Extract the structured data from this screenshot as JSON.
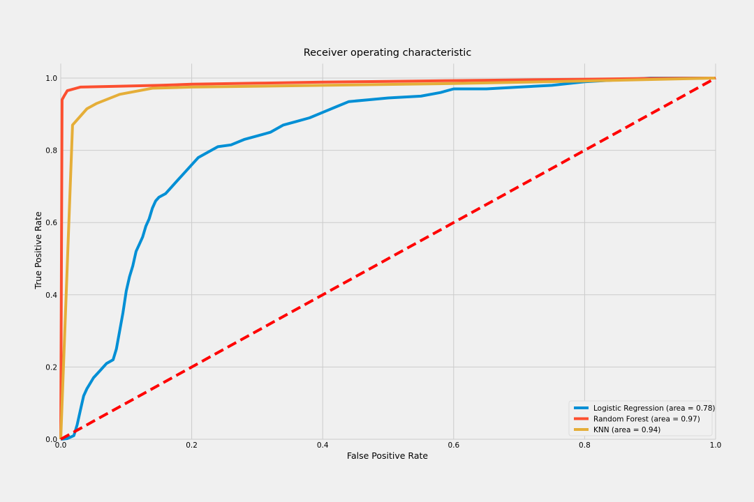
{
  "chart_data": {
    "type": "line",
    "title": "Receiver operating characteristic",
    "xlabel": "False Positive Rate",
    "ylabel": "True Positive Rate",
    "xlim": [
      0,
      1
    ],
    "ylim": [
      0,
      1.04
    ],
    "xticks": [
      0.0,
      0.2,
      0.4,
      0.6,
      0.8,
      1.0
    ],
    "xtick_labels": [
      "0.0",
      "0.2",
      "0.4",
      "0.6",
      "0.8",
      "1.0"
    ],
    "yticks": [
      0.0,
      0.2,
      0.4,
      0.6,
      0.8,
      1.0
    ],
    "ytick_labels": [
      "0.0",
      "0.2",
      "0.4",
      "0.6",
      "0.8",
      "1.0"
    ],
    "grid": true,
    "legend_position": "lower-right",
    "series": [
      {
        "name": "Logistic Regression (area = 0.78)",
        "color": "#008fd5",
        "style": "solid",
        "x": [
          0.0,
          0.01,
          0.02,
          0.025,
          0.03,
          0.035,
          0.04,
          0.05,
          0.06,
          0.065,
          0.07,
          0.08,
          0.085,
          0.09,
          0.095,
          0.1,
          0.105,
          0.11,
          0.115,
          0.12,
          0.125,
          0.13,
          0.135,
          0.14,
          0.145,
          0.15,
          0.16,
          0.17,
          0.18,
          0.19,
          0.2,
          0.21,
          0.22,
          0.24,
          0.26,
          0.28,
          0.3,
          0.32,
          0.34,
          0.36,
          0.38,
          0.4,
          0.42,
          0.44,
          0.47,
          0.5,
          0.55,
          0.58,
          0.6,
          0.65,
          0.7,
          0.75,
          0.8,
          0.85,
          0.9,
          0.95,
          1.0
        ],
        "y": [
          0.0,
          0.002,
          0.01,
          0.04,
          0.08,
          0.12,
          0.14,
          0.17,
          0.19,
          0.2,
          0.21,
          0.22,
          0.25,
          0.3,
          0.35,
          0.41,
          0.45,
          0.48,
          0.52,
          0.54,
          0.56,
          0.59,
          0.61,
          0.64,
          0.66,
          0.67,
          0.68,
          0.7,
          0.72,
          0.74,
          0.76,
          0.78,
          0.79,
          0.81,
          0.815,
          0.83,
          0.84,
          0.85,
          0.87,
          0.88,
          0.89,
          0.905,
          0.92,
          0.935,
          0.94,
          0.945,
          0.95,
          0.96,
          0.97,
          0.97,
          0.975,
          0.98,
          0.99,
          0.995,
          1.0,
          1.0,
          1.0
        ]
      },
      {
        "name": "Random Forest (area = 0.97)",
        "color": "#fc4f30",
        "style": "solid",
        "x": [
          0.0,
          0.002,
          0.005,
          0.01,
          0.03,
          0.08,
          0.15,
          0.2,
          0.3,
          0.4,
          0.5,
          0.6,
          0.7,
          0.8,
          0.9,
          1.0
        ],
        "y": [
          0.0,
          0.94,
          0.95,
          0.965,
          0.975,
          0.977,
          0.98,
          0.983,
          0.986,
          0.989,
          0.991,
          0.993,
          0.995,
          0.997,
          0.999,
          1.0
        ]
      },
      {
        "name": "KNN (area = 0.94)",
        "color": "#e5ae38",
        "style": "solid",
        "x": [
          0.0,
          0.018,
          0.04,
          0.055,
          0.09,
          0.14,
          0.2,
          0.4,
          0.6,
          0.8,
          1.0
        ],
        "y": [
          0.0,
          0.87,
          0.915,
          0.93,
          0.955,
          0.972,
          0.975,
          0.98,
          0.985,
          0.992,
          1.0
        ]
      },
      {
        "name": "",
        "color": "#ff0000",
        "style": "dashed",
        "x": [
          0.0,
          1.0
        ],
        "y": [
          0.0,
          1.0
        ]
      }
    ]
  }
}
